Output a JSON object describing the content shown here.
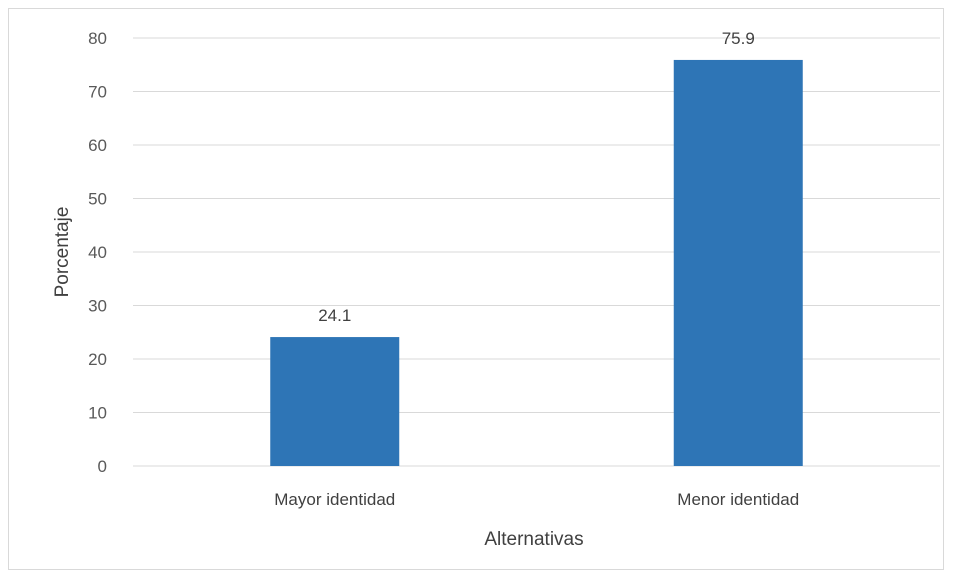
{
  "chart_data": {
    "type": "bar",
    "categories": [
      "Mayor identidad",
      "Menor identidad"
    ],
    "values": [
      24.1,
      75.9
    ],
    "data_labels": [
      "24.1",
      "75.9"
    ],
    "xlabel": "Alternativas",
    "ylabel": "Porcentaje",
    "ylim": [
      0,
      80
    ],
    "yticks": [
      0,
      10,
      20,
      30,
      40,
      50,
      60,
      70,
      80
    ],
    "ytick_labels": [
      "0",
      "10",
      "20",
      "30",
      "40",
      "50",
      "60",
      "70",
      "80"
    ],
    "grid": true,
    "legend": "none",
    "bar_color": "#2e75b6",
    "grid_color": "#d9d9d9"
  }
}
